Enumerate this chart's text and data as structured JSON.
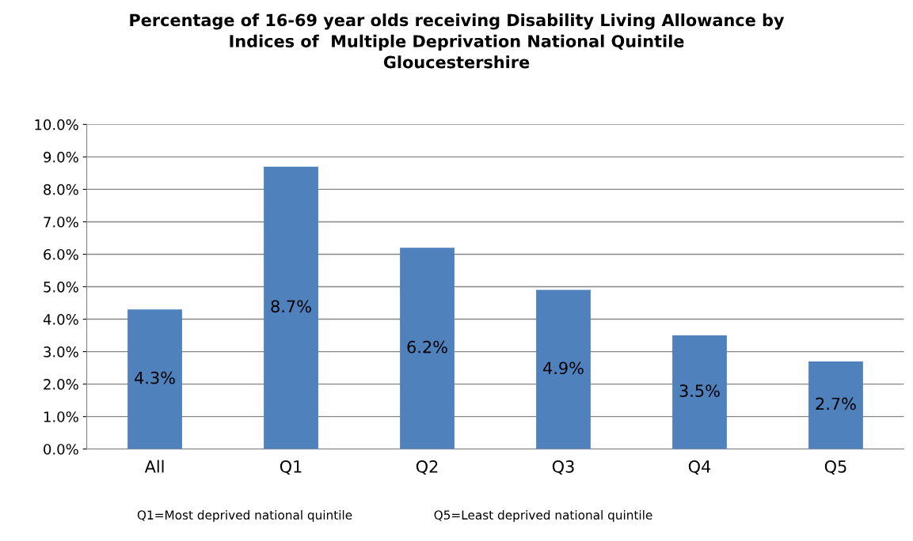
{
  "chart_data": {
    "type": "bar",
    "title": "Percentage of 16-69 year olds receiving Disability Living Allowance by\nIndices of  Multiple Deprivation National Quintile\nGloucestershire",
    "categories": [
      "All",
      "Q1",
      "Q2",
      "Q3",
      "Q4",
      "Q5"
    ],
    "values": [
      4.3,
      8.7,
      6.2,
      4.9,
      3.5,
      2.7
    ],
    "value_labels": [
      "4.3%",
      "8.7%",
      "6.2%",
      "4.9%",
      "3.5%",
      "2.7%"
    ],
    "color": "#4f81bd",
    "ylim": [
      0,
      10
    ],
    "yticks": [
      {
        "value": 0,
        "label": "0.0%"
      },
      {
        "value": 1,
        "label": "1.0%"
      },
      {
        "value": 2,
        "label": "2.0%"
      },
      {
        "value": 3,
        "label": "3.0%"
      },
      {
        "value": 4,
        "label": "4.0%"
      },
      {
        "value": 5,
        "label": "5.0%"
      },
      {
        "value": 6,
        "label": "6.0%"
      },
      {
        "value": 7,
        "label": "7.0%"
      },
      {
        "value": 8,
        "label": "8.0%"
      },
      {
        "value": 9,
        "label": "9.0%"
      },
      {
        "value": 10,
        "label": "10.0%"
      }
    ],
    "grid": "y",
    "annotations": [
      "Q1=Most deprived national quintile",
      "Q5=Least deprived national quintile"
    ]
  }
}
